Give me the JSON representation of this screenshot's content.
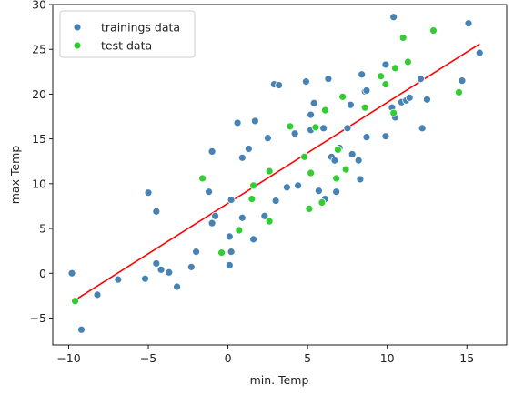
{
  "chart_data": {
    "type": "scatter",
    "xlabel": "min. Temp",
    "ylabel": "max Temp",
    "xlim": [
      -11,
      17.5
    ],
    "ylim": [
      -8,
      30
    ],
    "xticks": [
      -10,
      -5,
      0,
      5,
      10,
      15
    ],
    "yticks": [
      -5,
      0,
      5,
      10,
      15,
      20,
      25,
      30
    ],
    "grid": false,
    "legend": "top-left",
    "colors": {
      "train": "#4682b4",
      "test": "#32cd32",
      "fit": "#ff0000"
    },
    "series": [
      {
        "name": "trainings data",
        "points": [
          [
            -9.8,
            0.0
          ],
          [
            -9.2,
            -6.3
          ],
          [
            -8.2,
            -2.4
          ],
          [
            -6.9,
            -0.7
          ],
          [
            -5.2,
            -0.6
          ],
          [
            -5.0,
            9.0
          ],
          [
            -4.5,
            6.9
          ],
          [
            -4.5,
            1.1
          ],
          [
            -4.2,
            0.4
          ],
          [
            -3.7,
            0.1
          ],
          [
            -3.2,
            -1.5
          ],
          [
            -2.3,
            0.7
          ],
          [
            -2.0,
            2.4
          ],
          [
            -1.2,
            9.1
          ],
          [
            -1.0,
            5.6
          ],
          [
            -1.0,
            13.6
          ],
          [
            -0.8,
            6.4
          ],
          [
            0.1,
            4.1
          ],
          [
            0.1,
            0.9
          ],
          [
            0.2,
            8.2
          ],
          [
            0.2,
            2.4
          ],
          [
            0.6,
            16.8
          ],
          [
            0.9,
            6.2
          ],
          [
            0.9,
            12.9
          ],
          [
            1.3,
            13.9
          ],
          [
            1.6,
            3.8
          ],
          [
            1.7,
            17.0
          ],
          [
            2.3,
            6.4
          ],
          [
            2.5,
            15.1
          ],
          [
            2.9,
            21.1
          ],
          [
            3.0,
            8.1
          ],
          [
            3.2,
            21.0
          ],
          [
            3.7,
            9.6
          ],
          [
            4.2,
            15.6
          ],
          [
            4.4,
            9.8
          ],
          [
            4.8,
            13.1
          ],
          [
            4.9,
            21.4
          ],
          [
            5.2,
            17.7
          ],
          [
            5.2,
            16.0
          ],
          [
            5.4,
            19.0
          ],
          [
            5.7,
            9.2
          ],
          [
            6.0,
            16.2
          ],
          [
            6.1,
            8.3
          ],
          [
            6.3,
            21.7
          ],
          [
            6.5,
            13.0
          ],
          [
            6.7,
            12.6
          ],
          [
            6.8,
            9.1
          ],
          [
            7.0,
            14.0
          ],
          [
            7.5,
            16.2
          ],
          [
            7.7,
            18.8
          ],
          [
            7.8,
            13.3
          ],
          [
            8.2,
            12.6
          ],
          [
            8.3,
            10.5
          ],
          [
            8.4,
            22.2
          ],
          [
            8.6,
            20.3
          ],
          [
            8.7,
            20.4
          ],
          [
            8.7,
            15.2
          ],
          [
            9.9,
            23.3
          ],
          [
            9.9,
            15.3
          ],
          [
            10.3,
            18.5
          ],
          [
            10.4,
            28.6
          ],
          [
            10.5,
            17.4
          ],
          [
            10.9,
            19.1
          ],
          [
            11.2,
            19.3
          ],
          [
            11.4,
            19.6
          ],
          [
            12.1,
            21.7
          ],
          [
            12.2,
            16.2
          ],
          [
            12.5,
            19.4
          ],
          [
            14.7,
            21.5
          ],
          [
            15.1,
            27.9
          ],
          [
            15.8,
            24.6
          ]
        ]
      },
      {
        "name": "test data",
        "points": [
          [
            -9.6,
            -3.1
          ],
          [
            -1.6,
            10.6
          ],
          [
            -0.4,
            2.3
          ],
          [
            0.7,
            4.8
          ],
          [
            1.5,
            8.3
          ],
          [
            1.6,
            9.8
          ],
          [
            2.6,
            5.8
          ],
          [
            2.6,
            11.4
          ],
          [
            3.9,
            16.4
          ],
          [
            4.8,
            13.0
          ],
          [
            5.1,
            7.2
          ],
          [
            5.2,
            11.2
          ],
          [
            5.5,
            16.3
          ],
          [
            5.9,
            7.9
          ],
          [
            6.1,
            18.2
          ],
          [
            6.8,
            10.6
          ],
          [
            6.9,
            13.8
          ],
          [
            7.2,
            19.7
          ],
          [
            7.4,
            11.6
          ],
          [
            8.6,
            18.5
          ],
          [
            9.6,
            22.0
          ],
          [
            9.9,
            21.1
          ],
          [
            10.4,
            17.9
          ],
          [
            10.5,
            22.9
          ],
          [
            11.0,
            26.3
          ],
          [
            11.3,
            23.6
          ],
          [
            12.9,
            27.1
          ],
          [
            14.5,
            20.2
          ]
        ]
      }
    ],
    "fit_line": {
      "x": [
        -9.7,
        15.8
      ],
      "y": [
        -3.1,
        25.6
      ]
    }
  }
}
